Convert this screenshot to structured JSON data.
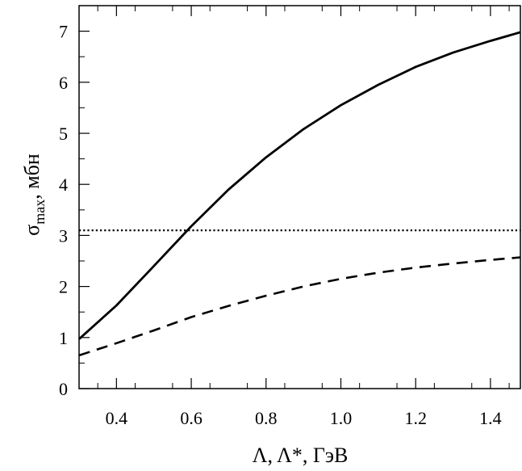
{
  "chart_data": {
    "type": "line",
    "title": "",
    "xlabel": "Λ, Λ*,  ГэВ",
    "ylabel_main": "σ",
    "ylabel_sub": "max",
    "ylabel_rest": ", мбн",
    "xlim": [
      0.3,
      1.48
    ],
    "ylim": [
      0,
      7.5
    ],
    "xticks": [
      0.4,
      0.6,
      0.8,
      1.0,
      1.2,
      1.4
    ],
    "xtick_labels": [
      "0.4",
      "0.6",
      "0.8",
      "1.0",
      "1.2",
      "1.4"
    ],
    "yticks": [
      0,
      1,
      2,
      3,
      4,
      5,
      6,
      7
    ],
    "ytick_labels": [
      "0",
      "1",
      "2",
      "3",
      "4",
      "5",
      "6",
      "7"
    ],
    "grid": false,
    "series": [
      {
        "style": "solid",
        "x": [
          0.3,
          0.4,
          0.5,
          0.6,
          0.7,
          0.8,
          0.9,
          1.0,
          1.1,
          1.2,
          1.3,
          1.4,
          1.48
        ],
        "y": [
          0.97,
          1.63,
          2.4,
          3.18,
          3.9,
          4.53,
          5.08,
          5.55,
          5.95,
          6.3,
          6.58,
          6.81,
          6.98
        ]
      },
      {
        "style": "dashed",
        "x": [
          0.3,
          0.4,
          0.5,
          0.6,
          0.7,
          0.8,
          0.9,
          1.0,
          1.1,
          1.2,
          1.3,
          1.4,
          1.48
        ],
        "y": [
          0.65,
          0.89,
          1.14,
          1.4,
          1.62,
          1.82,
          2.0,
          2.15,
          2.27,
          2.37,
          2.45,
          2.52,
          2.57
        ]
      },
      {
        "style": "dotted",
        "x": [
          0.3,
          1.48
        ],
        "y": [
          3.1,
          3.1
        ]
      }
    ]
  }
}
